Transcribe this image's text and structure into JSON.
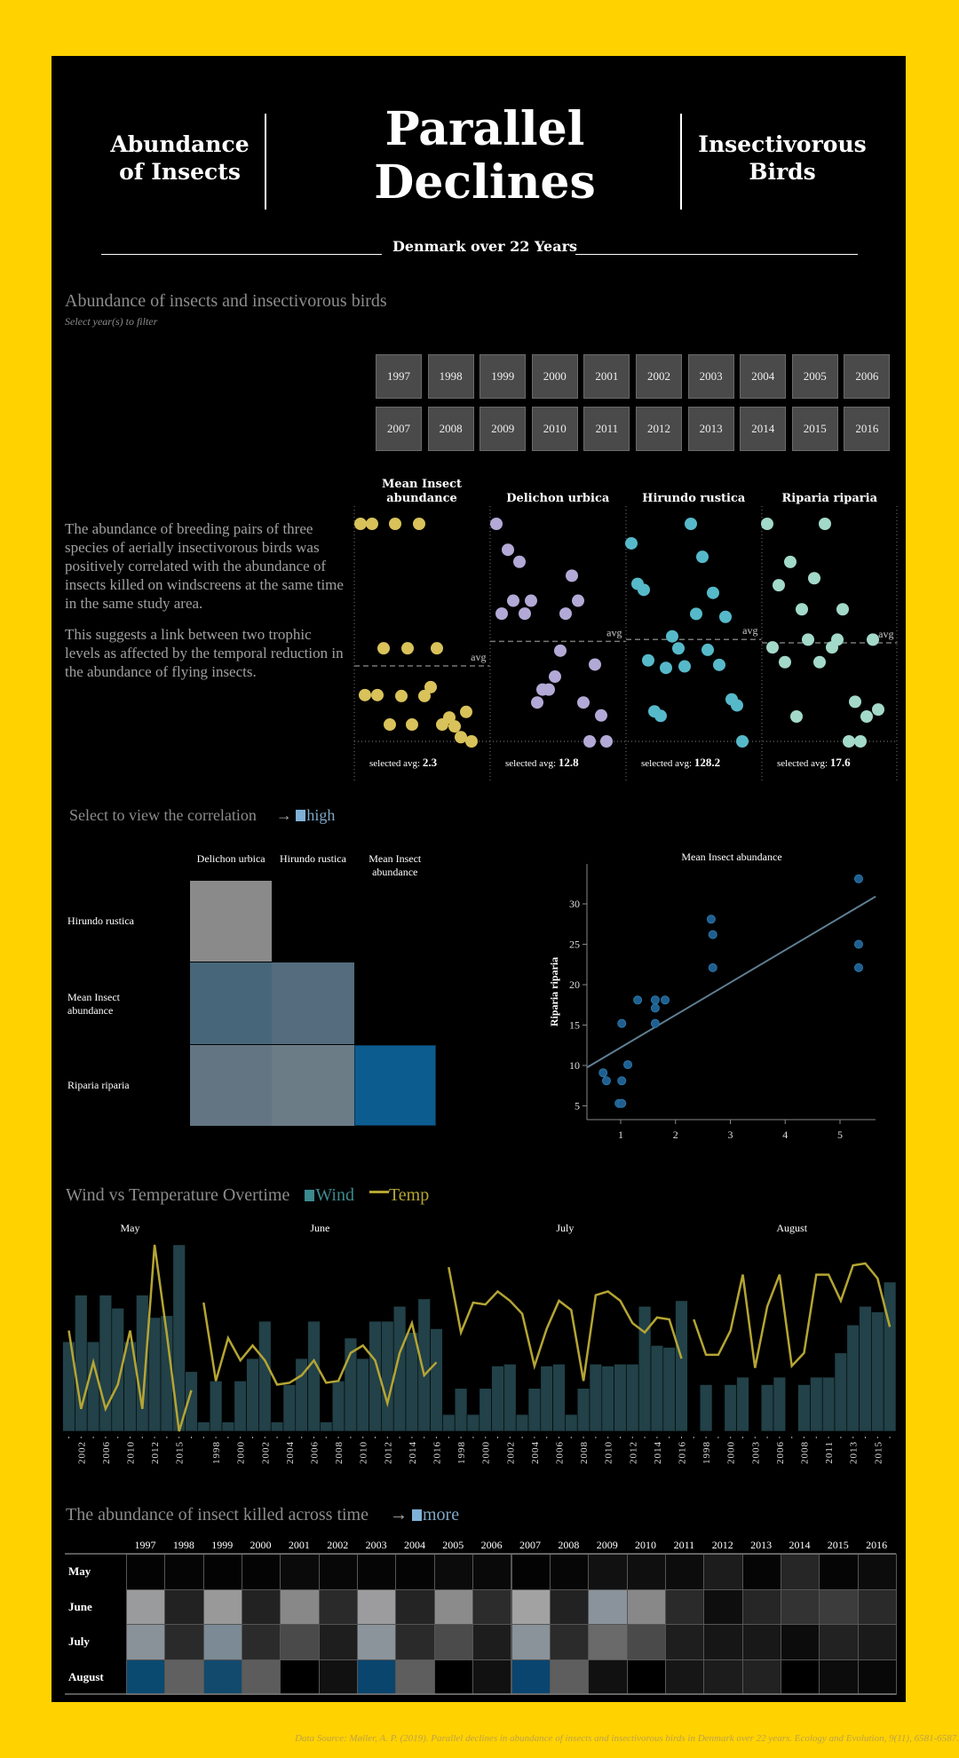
{
  "header": {
    "left_title": [
      "Abundance",
      "of Insects"
    ],
    "main_title": [
      "Parallel",
      "Declines"
    ],
    "right_title": [
      "Insectivorous",
      "Birds"
    ],
    "subtitle": "Denmark over 22 Years"
  },
  "filter_section": {
    "title": "Abundance of insects and insectivorous birds",
    "subtitle": "Select year(s) to filter",
    "years": [
      "1997",
      "1998",
      "1999",
      "2000",
      "2001",
      "2002",
      "2003",
      "2004",
      "2005",
      "2006",
      "2007",
      "2008",
      "2009",
      "2010",
      "2011",
      "2012",
      "2013",
      "2014",
      "2015",
      "2016"
    ]
  },
  "description": [
    "The abundance of breeding pairs of three species of aerially insectivorous birds was positively correlated with the abundance of insects killed on windscreens at the same time in the same study area.",
    "This suggests a link between two trophic levels as affected by the temporal reduction in the abundance of flying insects."
  ],
  "strip_labels": {
    "avg": "avg",
    "selected_avg": "selected avg: "
  },
  "colors": {
    "background": "#FFD200",
    "insect": "#d9c25a",
    "delichon": "#b3a9d6",
    "hirundo": "#56b9c9",
    "riparia": "#a3d9c9",
    "wind": "#3d8a8e",
    "temp": "#b5a533",
    "high": "#7fb0d8"
  },
  "chart_data": [
    {
      "type": "scatter",
      "title": "Abundance of insects and insectivorous birds (strip plots)",
      "panels": [
        {
          "name": "Mean Insect abundance",
          "selected_avg": "2.3",
          "values": [
            5.35,
            5.35,
            5.35,
            5.35,
            2.69,
            2.69,
            2.69,
            1.69,
            1.69,
            1.67,
            1.67,
            1.86,
            1.06,
            1.06,
            1.06,
            1.21,
            1.02,
            1.33,
            0.79,
            0.7
          ]
        },
        {
          "name": "Delichon urbica",
          "selected_avg": "12.8",
          "values": [
            25.5,
            22.7,
            21.4,
            19.9,
            17.2,
            17.2,
            17.2,
            15.8,
            15.8,
            15.8,
            11.8,
            10.3,
            9.0,
            7.6,
            7.6,
            6.2,
            6.2,
            4.8,
            2,
            2
          ]
        },
        {
          "name": "Hirundo rustica",
          "selected_avg": "128.2",
          "values": [
            205,
            192,
            183,
            165,
            161,
            159,
            145,
            143,
            130,
            122,
            121,
            114,
            109,
            110,
            111,
            88,
            84,
            80,
            77,
            60
          ]
        },
        {
          "name": "Riparia riparia",
          "selected_avg": "17.6",
          "values": [
            33,
            33,
            28.1,
            26,
            25.1,
            22,
            22,
            18.1,
            18.1,
            18.1,
            17.1,
            17.1,
            15.2,
            15.2,
            10.1,
            9.1,
            8.2,
            8.2,
            5,
            5
          ]
        }
      ]
    },
    {
      "type": "heatmap",
      "title": "Select to view the correlation",
      "legend": "high",
      "columns": [
        "Delichon urbica",
        "Hirundo rustica",
        "Mean Insect abundance"
      ],
      "rows": [
        "Hirundo rustica",
        "Mean Insect abundance",
        "Riparia riparia"
      ],
      "cells": [
        [
          "#8a8a8a",
          null,
          null
        ],
        [
          "#48667a",
          "#546c7e",
          null
        ],
        [
          "#637582",
          "#6b7c86",
          "#0d5c90"
        ]
      ]
    },
    {
      "type": "scatter",
      "title": "Mean Insect abundance",
      "xlabel": "Mean Insect abundance",
      "ylabel": "Riparia riparia",
      "xlim": [
        0.39,
        5.65
      ],
      "ylim": [
        3.4,
        34.9
      ],
      "xticks": [
        "1",
        "2",
        "3",
        "4",
        "5"
      ],
      "yticks": [
        "5",
        "10",
        "15",
        "20",
        "25",
        "30"
      ],
      "x": [
        5.34,
        2.65,
        2.68,
        2.68,
        5.34,
        5.34,
        1.31,
        1.63,
        1.81,
        1.63,
        1.63,
        1.02,
        1.13,
        0.68,
        0.74,
        1.02,
        0.97,
        1.02
      ],
      "y": [
        33.1,
        28.1,
        26.2,
        22.1,
        25,
        22.1,
        18.1,
        18.1,
        18.1,
        17.1,
        15.2,
        15.2,
        10.1,
        9.1,
        8.1,
        8.1,
        5.3,
        5.3
      ],
      "regression": {
        "slope": 4.02,
        "intercept": 8.2
      }
    },
    {
      "type": "bar",
      "title": "Wind vs Temperature Overtime",
      "legend": [
        "Wind",
        "Temp"
      ],
      "units": "relative (0-100)",
      "months": [
        {
          "name": "May",
          "labels": [
            "",
            "2002",
            "",
            "2006",
            "",
            "2010",
            "",
            "2012",
            "",
            "2015",
            ""
          ],
          "wind": [
            48,
            73,
            48,
            73,
            66,
            48,
            73,
            61,
            62,
            100,
            32
          ],
          "temp": [
            54,
            12,
            37,
            12,
            25,
            54,
            12,
            100,
            52,
            0,
            22
          ]
        },
        {
          "name": "June",
          "labels": [
            "",
            "1998",
            "",
            "2000",
            "",
            "2002",
            "",
            "2004",
            "",
            "2006",
            "",
            "2008",
            "",
            "2010",
            "",
            "2012",
            "",
            "2014",
            "",
            "2016"
          ],
          "wind": [
            5,
            27,
            5,
            27,
            39,
            59,
            5,
            25,
            39,
            59,
            5,
            27,
            50,
            39,
            59,
            59,
            67,
            53,
            71,
            55
          ],
          "temp": [
            69,
            27,
            50,
            38,
            46,
            38,
            25,
            26,
            30,
            38,
            26,
            27,
            42,
            46,
            38,
            15,
            42,
            58,
            30,
            37
          ]
        },
        {
          "name": "July",
          "labels": [
            "",
            "1998",
            "",
            "2000",
            "",
            "2002",
            "",
            "2004",
            "",
            "2006",
            "",
            "2008",
            "",
            "2010",
            "",
            "2012",
            "",
            "2014",
            "",
            "2016"
          ],
          "wind": [
            9,
            23,
            9,
            23,
            35,
            36,
            9,
            23,
            35,
            36,
            9,
            23,
            36,
            35,
            36,
            36,
            67,
            46,
            45,
            70
          ],
          "temp": [
            88,
            53,
            69,
            68,
            75,
            70,
            63,
            35,
            55,
            70,
            65,
            27,
            73,
            75,
            70,
            58,
            53,
            61,
            60,
            39
          ]
        },
        {
          "name": "August",
          "labels": [
            "",
            "1998",
            "",
            "2000",
            "",
            "2003",
            "",
            "2006",
            "",
            "2008",
            "",
            "2011",
            "",
            "2013",
            "",
            "2015",
            ""
          ],
          "wind": [
            0,
            25,
            0,
            25,
            29,
            0,
            25,
            29,
            0,
            25,
            29,
            29,
            42,
            57,
            67,
            64,
            80
          ],
          "temp": [
            60,
            41,
            41,
            54,
            84,
            34,
            67,
            84,
            35,
            42,
            84,
            84,
            70,
            89,
            90,
            82,
            56
          ]
        }
      ]
    },
    {
      "type": "heatmap",
      "title": "The abundance of insect killed across time",
      "legend": "more",
      "columns": [
        "1997",
        "1998",
        "1999",
        "2000",
        "2001",
        "2002",
        "2003",
        "2004",
        "2005",
        "2006",
        "2007",
        "2008",
        "2009",
        "2010",
        "2011",
        "2012",
        "2013",
        "2014",
        "2015",
        "2016"
      ],
      "rows": [
        "May",
        "June",
        "July",
        "August"
      ],
      "cells": [
        [
          "#030303",
          "#050505",
          "#030303",
          "#040404",
          "#0a0a0a",
          "#070707",
          "#050505",
          "#040404",
          "#0b0b0b",
          "#090909",
          "#030303",
          "#060606",
          "#111111",
          "#0f0f0f",
          "#0c0c0c",
          "#1c1c1c",
          "#050505",
          "#262626",
          "#050505",
          "#0c0c0c"
        ],
        [
          "#9a9b9d",
          "#222222",
          "#999999",
          "#222222",
          "#888888",
          "#2a2a2a",
          "#9c9c9e",
          "#242424",
          "#8b8b8b",
          "#2c2c2c",
          "#a2a2a2",
          "#222222",
          "#8a939c",
          "#888888",
          "#2a2a2a",
          "#0e0e0e",
          "#262626",
          "#333333",
          "#3c3c3c",
          "#2a2a2a"
        ],
        [
          "#8a9299",
          "#2a2a2a",
          "#7b8a94",
          "#2b2b2b",
          "#4a4a4a",
          "#1e1e1e",
          "#8b949b",
          "#2a2a2a",
          "#4b4b4b",
          "#1d1d1d",
          "#8a939a",
          "#2b2b2b",
          "#6a6a6a",
          "#4a4a4a",
          "#1e1e1e",
          "#161616",
          "#181818",
          "#0c0c0c",
          "#222222",
          "#1a1a1a"
        ],
        [
          "#0b4a70",
          "#606060",
          "#124a6e",
          "#5c5c5c",
          "#000000",
          "#111111",
          "#0a456e",
          "#5e5e5e",
          "#000000",
          "#111111",
          "#0a4570",
          "#5e5e5e",
          "#111111",
          "#000000",
          "#161616",
          "#1c1c1c",
          "#222222",
          "#000000",
          "#0c0c0c",
          "#080808"
        ]
      ]
    }
  ],
  "footer": {
    "source": "Data Source: Møller, A. P. (2019). Parallel declines in abundance of insects and insectivorous birds in Denmark over 22 years. Ecology and Evolution, 9(11), 6581-6587."
  }
}
